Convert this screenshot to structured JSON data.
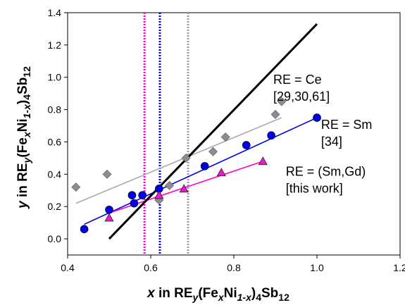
{
  "chart_data": {
    "type": "scatter",
    "xlim": [
      0.4,
      1.2
    ],
    "ylim": [
      -0.1,
      1.4
    ],
    "x_ticks": [
      "0.4",
      "0.6",
      "0.8",
      "1.0",
      "1.2"
    ],
    "y_ticks": [
      "0.0",
      "0.2",
      "0.4",
      "0.6",
      "0.8",
      "1.0",
      "1.2",
      "1.4"
    ],
    "x_tick_values": [
      0.4,
      0.6,
      0.8,
      1.0,
      1.2
    ],
    "y_tick_values": [
      0.0,
      0.2,
      0.4,
      0.6,
      0.8,
      1.0,
      1.2,
      1.4
    ],
    "xlabel": {
      "prefix": "x",
      "mid": " in RE",
      "sub1": "y",
      "open": "(Fe",
      "sub2": "x",
      "ni": "Ni",
      "sub3": "1-x",
      "close": ")",
      "sub4": "4",
      "sb": "Sb",
      "sub5": "12"
    },
    "ylabel": {
      "prefix": "y",
      "mid": " in RE",
      "sub1": "y",
      "open": "(Fe",
      "sub2": "x",
      "ni": "Ni",
      "sub3": "1-x",
      "close": ")",
      "sub4": "4",
      "sb": "Sb",
      "sub5": "12"
    },
    "grid": false,
    "series": [
      {
        "marker": "diamond",
        "color": "#8c8c94",
        "points": [
          [
            0.42,
            0.32
          ],
          [
            0.495,
            0.4
          ],
          [
            0.62,
            0.24
          ],
          [
            0.645,
            0.33
          ],
          [
            0.685,
            0.5
          ],
          [
            0.75,
            0.54
          ],
          [
            0.78,
            0.63
          ],
          [
            0.9,
            0.77
          ],
          [
            0.915,
            0.85
          ]
        ],
        "fit": [
          [
            0.42,
            0.22
          ],
          [
            0.915,
            0.75
          ]
        ],
        "fit_color": "#a8a8b0"
      },
      {
        "marker": "circle",
        "color": "#0000e8",
        "points": [
          [
            0.44,
            0.06
          ],
          [
            0.5,
            0.18
          ],
          [
            0.555,
            0.27
          ],
          [
            0.56,
            0.22
          ],
          [
            0.58,
            0.27
          ],
          [
            0.62,
            0.31
          ],
          [
            0.73,
            0.45
          ],
          [
            0.83,
            0.58
          ],
          [
            0.89,
            0.64
          ],
          [
            1.0,
            0.75
          ]
        ],
        "fit": [
          [
            0.44,
            0.09
          ],
          [
            1.0,
            0.75
          ]
        ],
        "fit_color": "#0000e0"
      },
      {
        "marker": "triangle",
        "color": "#e020c0",
        "points": [
          [
            0.5,
            0.13
          ],
          [
            0.62,
            0.27
          ],
          [
            0.68,
            0.31
          ],
          [
            0.77,
            0.41
          ],
          [
            0.87,
            0.48
          ]
        ],
        "fit": [
          [
            0.5,
            0.16
          ],
          [
            0.87,
            0.48
          ]
        ],
        "fit_color": "#ff00cc"
      }
    ],
    "trend_line": {
      "from": [
        0.5,
        0.0
      ],
      "to": [
        1.0,
        1.33
      ],
      "color": "#000000"
    },
    "vertical_lines": [
      {
        "x": 0.585,
        "color": "#ff00dd"
      },
      {
        "x": 0.622,
        "color": "#0000e8"
      },
      {
        "x": 0.69,
        "color": "#9a9aa6"
      }
    ],
    "annotations": [
      {
        "lines": [
          "RE = Ce",
          "[29,30,61]"
        ],
        "x": 0.895,
        "y": 0.96
      },
      {
        "lines": [
          "RE = Sm",
          "[34]"
        ],
        "x": 1.01,
        "y": 0.68
      },
      {
        "lines": [
          "RE = (Sm,Gd)",
          "[this work]"
        ],
        "x": 0.925,
        "y": 0.39
      }
    ]
  }
}
